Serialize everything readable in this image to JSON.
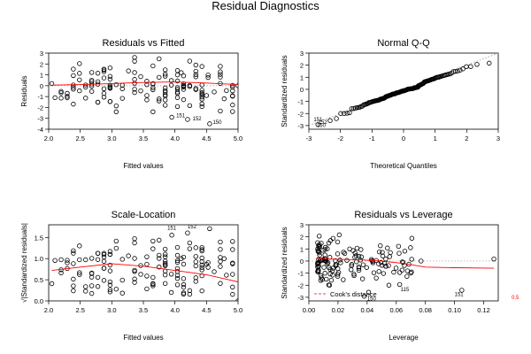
{
  "figure_title": "Residual Diagnostics",
  "colors": {
    "points": "#000000",
    "smooth": "#ff0000",
    "refline": "#999999",
    "cook": "#ff0000"
  },
  "chart_data": [
    {
      "type": "scatter",
      "title": "Residuals vs Fitted",
      "xlabel": "Fitted values",
      "ylabel": "Residuals",
      "xlim": [
        2.0,
        5.0
      ],
      "ylim": [
        -4,
        3
      ],
      "xticks": [
        "2.0",
        "2.5",
        "3.0",
        "3.5",
        "4.0",
        "4.5",
        "5.0"
      ],
      "yticks": [
        "-4",
        "-3",
        "-2",
        "-1",
        "0",
        "1",
        "2",
        "3"
      ],
      "reference_line": {
        "y": 0,
        "style": "dotted"
      },
      "smooth": [
        [
          2.05,
          0.05
        ],
        [
          2.5,
          0.1
        ],
        [
          3.0,
          0.2
        ],
        [
          3.5,
          0.3
        ],
        [
          4.0,
          0.35
        ],
        [
          4.5,
          0.25
        ],
        [
          5.0,
          0.1
        ]
      ],
      "labels": [
        {
          "text": "151",
          "x": 4.02,
          "y": -2.9
        },
        {
          "text": "152",
          "x": 4.28,
          "y": -3.2
        },
        {
          "text": "150",
          "x": 4.6,
          "y": -3.5
        }
      ]
    },
    {
      "type": "scatter",
      "title": "Normal Q-Q",
      "xlabel": "Theoretical Quantiles",
      "ylabel": "Standardized residuals",
      "xlim": [
        -3,
        3
      ],
      "ylim": [
        -3.3,
        3
      ],
      "xticks": [
        "-3",
        "-2",
        "-1",
        "0",
        "1",
        "2",
        "3"
      ],
      "yticks": [
        "-3",
        "-2",
        "-1",
        "0",
        "1",
        "2",
        "3"
      ],
      "reference_line": {
        "from": [
          -3,
          -3
        ],
        "to": [
          3,
          3
        ],
        "style": "dotted"
      },
      "labels": [
        {
          "text": "151",
          "x": -2.85,
          "y": -2.65
        },
        {
          "text": "152",
          "x": -2.7,
          "y": -2.85
        },
        {
          "text": "150",
          "x": -2.75,
          "y": -3.1
        }
      ]
    },
    {
      "type": "scatter",
      "title": "Scale-Location",
      "xlabel": "Fitted values",
      "ylabel": "√|Standardized residuals|",
      "xlim": [
        2.0,
        5.0
      ],
      "ylim": [
        0,
        1.8
      ],
      "xticks": [
        "2.0",
        "2.5",
        "3.0",
        "3.5",
        "4.0",
        "4.5",
        "5.0"
      ],
      "yticks": [
        "0.0",
        "0.5",
        "1.0",
        "1.5"
      ],
      "smooth": [
        [
          2.05,
          0.72
        ],
        [
          2.5,
          0.8
        ],
        [
          3.0,
          0.88
        ],
        [
          3.5,
          0.82
        ],
        [
          4.0,
          0.72
        ],
        [
          4.5,
          0.62
        ],
        [
          5.0,
          0.45
        ]
      ],
      "labels": [
        {
          "text": "151",
          "x": 3.88,
          "y": 1.68
        },
        {
          "text": "152",
          "x": 4.2,
          "y": 1.72
        },
        {
          "text": "150",
          "x": 4.45,
          "y": 1.8
        }
      ]
    },
    {
      "type": "scatter",
      "title": "Residuals vs Leverage",
      "xlabel": "Leverage",
      "ylabel": "Standardized residuals",
      "xlim": [
        0,
        0.13
      ],
      "ylim": [
        -3.3,
        3
      ],
      "xticks": [
        "0.00",
        "0.02",
        "0.04",
        "0.06",
        "0.08",
        "0.10",
        "0.12"
      ],
      "yticks": [
        "-3",
        "-2",
        "-1",
        "0",
        "1",
        "2",
        "3"
      ],
      "smooth": [
        [
          0.005,
          0.2
        ],
        [
          0.02,
          0.15
        ],
        [
          0.035,
          0.1
        ],
        [
          0.05,
          0.0
        ],
        [
          0.065,
          -0.2
        ],
        [
          0.08,
          -0.5
        ],
        [
          0.1,
          -0.55
        ],
        [
          0.127,
          -0.6
        ]
      ],
      "cook_level": "0.5",
      "legend": "Cook's distance",
      "labels": [
        {
          "text": "115",
          "x": 0.063,
          "y": -2.5
        },
        {
          "text": "151",
          "x": 0.1,
          "y": -2.9
        },
        {
          "text": "150",
          "x": 0.04,
          "y": -3.25
        }
      ]
    }
  ]
}
